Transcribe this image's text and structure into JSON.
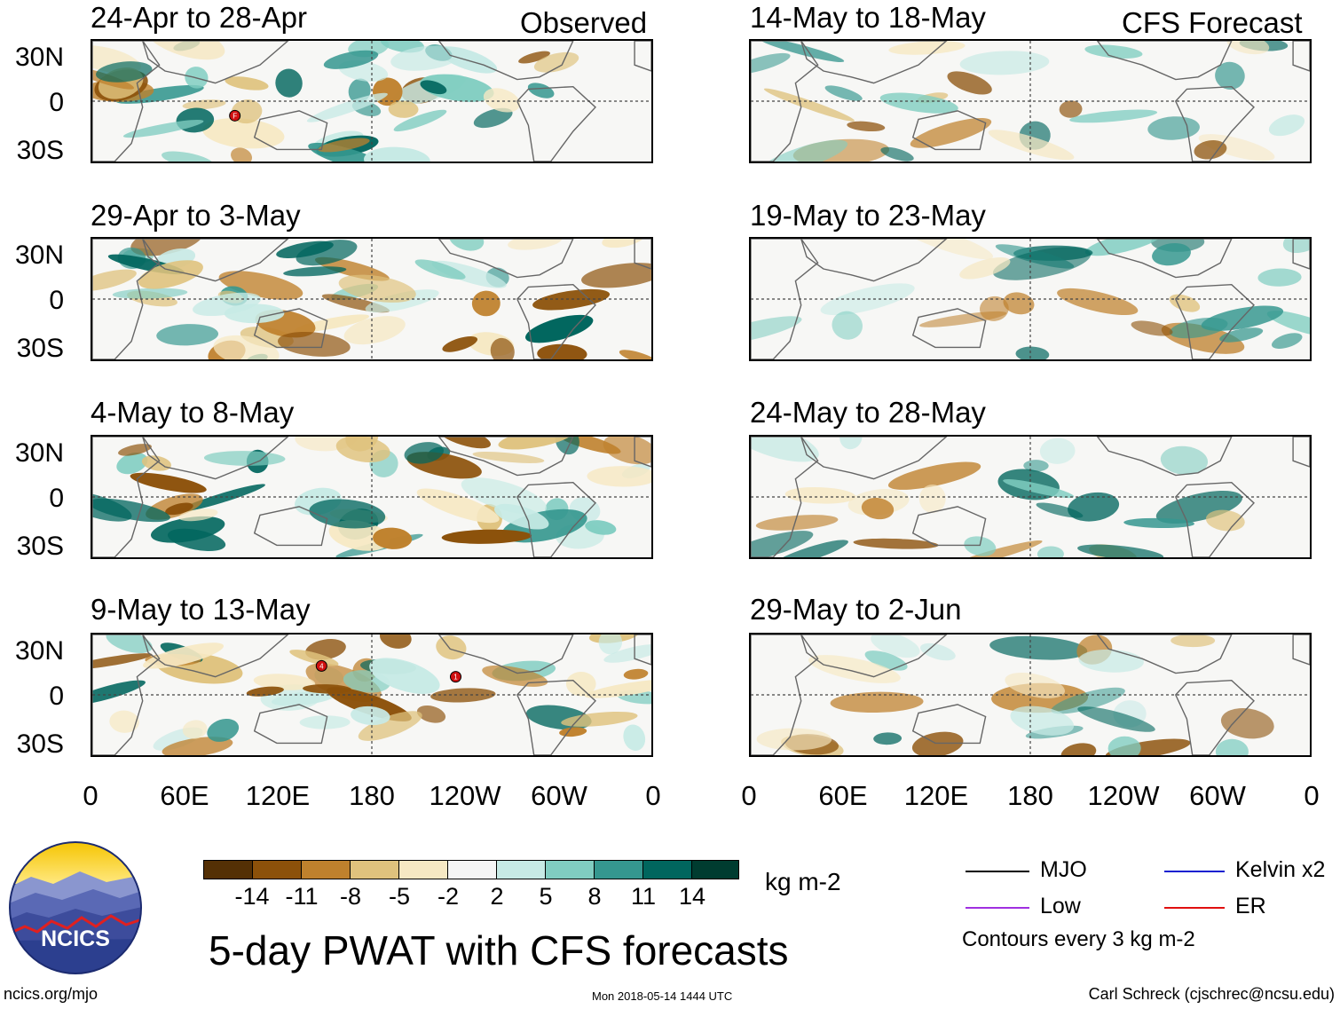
{
  "columns": {
    "left_label": "Observed",
    "right_label": "CFS Forecast"
  },
  "panels_left": [
    {
      "title": "24-Apr to 28-Apr"
    },
    {
      "title": "29-Apr to 3-May"
    },
    {
      "title": "4-May to 8-May"
    },
    {
      "title": "9-May to 13-May"
    }
  ],
  "panels_right": [
    {
      "title": "14-May to 18-May"
    },
    {
      "title": "19-May to 23-May"
    },
    {
      "title": "24-May to 28-May"
    },
    {
      "title": "29-May to 2-Jun"
    }
  ],
  "lat_labels": [
    "30N",
    "0",
    "30S"
  ],
  "lon_labels": [
    "0",
    "60E",
    "120E",
    "180",
    "120W",
    "60W",
    "0"
  ],
  "colorbar": {
    "colors": [
      "#543005",
      "#8c510a",
      "#bf812d",
      "#dfc27d",
      "#f6e8c3",
      "#f5f5f5",
      "#c7eae5",
      "#80cdc1",
      "#35978f",
      "#01665e",
      "#003c30"
    ],
    "labels": [
      "-14",
      "-11",
      "-8",
      "-5",
      "-2",
      "2",
      "5",
      "8",
      "11",
      "14"
    ],
    "units": "kg m-2"
  },
  "legend": {
    "items": [
      {
        "label": "MJO",
        "color": "#000000"
      },
      {
        "label": "Kelvin x2",
        "color": "#1020d0"
      },
      {
        "label": "Low",
        "color": "#a030e0"
      },
      {
        "label": "ER",
        "color": "#e01010"
      }
    ],
    "note": "Contours every 3 kg m-2"
  },
  "storm_markers": [
    {
      "panel": "24-Apr to 28-Apr",
      "label": "F"
    },
    {
      "panel": "9-May to 13-May",
      "label": "4"
    },
    {
      "panel": "9-May to 13-May",
      "label": "1"
    }
  ],
  "main_title": "5-day PWAT with CFS forecasts",
  "footer": {
    "url": "ncics.org/mjo",
    "timestamp": "Mon 2018-05-14 1444 UTC",
    "credit": "Carl Schreck (cjschrec@ncsu.edu)"
  },
  "logo": {
    "text": "NCICS"
  }
}
